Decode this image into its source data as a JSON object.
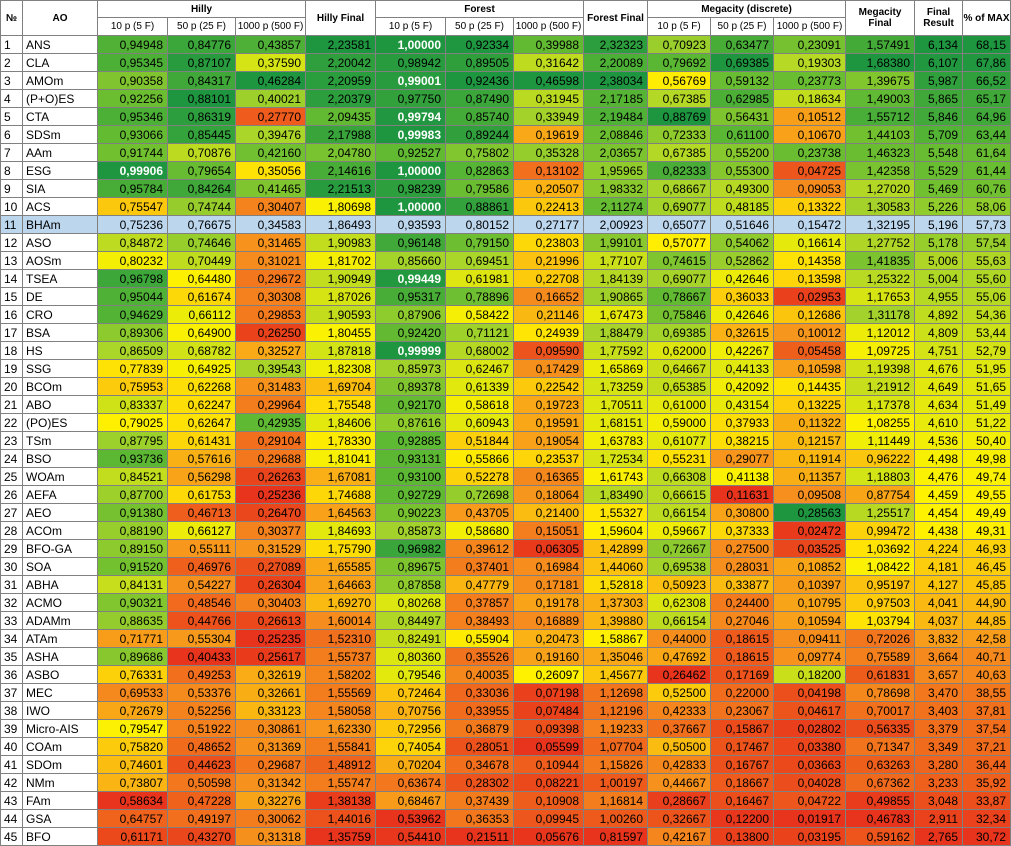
{
  "header": {
    "num": "№",
    "ao": "AO",
    "groups": [
      "Hilly",
      "Hilly Final",
      "Forest",
      "Forest Final",
      "Megacity (discrete)",
      "Megacity Final",
      "Final Result",
      "% of MAX"
    ],
    "sub": [
      "10 p (5 F)",
      "50 p (25 F)",
      "1000 p (500 F)",
      "10 p (5 F)",
      "50 p (25 F)",
      "1000 p (500 F)",
      "10 p (5 F)",
      "50 p (25 F)",
      "1000 p (500 F)"
    ]
  },
  "selected_row": 11,
  "rows": [
    [
      "1",
      "ANS",
      "0,94948",
      "0,84776",
      "0,43857",
      "2,23581",
      "1,00000",
      "0,92334",
      "0,39988",
      "2,32323",
      "0,70923",
      "0,63477",
      "0,23091",
      "1,57491",
      "6,134",
      "68,15"
    ],
    [
      "2",
      "CLA",
      "0,95345",
      "0,87107",
      "0,37590",
      "2,20042",
      "0,98942",
      "0,89505",
      "0,31642",
      "2,20089",
      "0,79692",
      "0,69385",
      "0,19303",
      "1,68380",
      "6,107",
      "67,86"
    ],
    [
      "3",
      "AMOm",
      "0,90358",
      "0,84317",
      "0,46284",
      "2,20959",
      "0,99001",
      "0,92436",
      "0,46598",
      "2,38034",
      "0,56769",
      "0,59132",
      "0,23773",
      "1,39675",
      "5,987",
      "66,52"
    ],
    [
      "4",
      "(P+O)ES",
      "0,92256",
      "0,88101",
      "0,40021",
      "2,20379",
      "0,97750",
      "0,87490",
      "0,31945",
      "2,17185",
      "0,67385",
      "0,62985",
      "0,18634",
      "1,49003",
      "5,865",
      "65,17"
    ],
    [
      "5",
      "CTA",
      "0,95346",
      "0,86319",
      "0,27770",
      "2,09435",
      "0,99794",
      "0,85740",
      "0,33949",
      "2,19484",
      "0,88769",
      "0,56431",
      "0,10512",
      "1,55712",
      "5,846",
      "64,96"
    ],
    [
      "6",
      "SDSm",
      "0,93066",
      "0,85445",
      "0,39476",
      "2,17988",
      "0,99983",
      "0,89244",
      "0,19619",
      "2,08846",
      "0,72333",
      "0,61100",
      "0,10670",
      "1,44103",
      "5,709",
      "63,44"
    ],
    [
      "7",
      "AAm",
      "0,91744",
      "0,70876",
      "0,42160",
      "2,04780",
      "0,92527",
      "0,75802",
      "0,35328",
      "2,03657",
      "0,67385",
      "0,55200",
      "0,23738",
      "1,46323",
      "5,548",
      "61,64"
    ],
    [
      "8",
      "ESG",
      "0,99906",
      "0,79654",
      "0,35056",
      "2,14616",
      "1,00000",
      "0,82863",
      "0,13102",
      "1,95965",
      "0,82333",
      "0,55300",
      "0,04725",
      "1,42358",
      "5,529",
      "61,44"
    ],
    [
      "9",
      "SIA",
      "0,95784",
      "0,84264",
      "0,41465",
      "2,21513",
      "0,98239",
      "0,79586",
      "0,20507",
      "1,98332",
      "0,68667",
      "0,49300",
      "0,09053",
      "1,27020",
      "5,469",
      "60,76"
    ],
    [
      "10",
      "ACS",
      "0,75547",
      "0,74744",
      "0,30407",
      "1,80698",
      "1,00000",
      "0,88861",
      "0,22413",
      "2,11274",
      "0,69077",
      "0,48185",
      "0,13322",
      "1,30583",
      "5,226",
      "58,06"
    ],
    [
      "11",
      "BHAm",
      "0,75236",
      "0,76675",
      "0,34583",
      "1,86493",
      "0,93593",
      "0,80152",
      "0,27177",
      "2,00923",
      "0,65077",
      "0,51646",
      "0,15472",
      "1,32195",
      "5,196",
      "57,73"
    ],
    [
      "12",
      "ASO",
      "0,84872",
      "0,74646",
      "0,31465",
      "1,90983",
      "0,96148",
      "0,79150",
      "0,23803",
      "1,99101",
      "0,57077",
      "0,54062",
      "0,16614",
      "1,27752",
      "5,178",
      "57,54"
    ],
    [
      "13",
      "AOSm",
      "0,80232",
      "0,70449",
      "0,31021",
      "1,81702",
      "0,85660",
      "0,69451",
      "0,21996",
      "1,77107",
      "0,74615",
      "0,52862",
      "0,14358",
      "1,41835",
      "5,006",
      "55,63"
    ],
    [
      "14",
      "TSEA",
      "0,96798",
      "0,64480",
      "0,29672",
      "1,90949",
      "0,99449",
      "0,61981",
      "0,22708",
      "1,84139",
      "0,69077",
      "0,42646",
      "0,13598",
      "1,25322",
      "5,004",
      "55,60"
    ],
    [
      "15",
      "DE",
      "0,95044",
      "0,61674",
      "0,30308",
      "1,87026",
      "0,95317",
      "0,78896",
      "0,16652",
      "1,90865",
      "0,78667",
      "0,36033",
      "0,02953",
      "1,17653",
      "4,955",
      "55,06"
    ],
    [
      "16",
      "CRO",
      "0,94629",
      "0,66112",
      "0,29853",
      "1,90593",
      "0,87906",
      "0,58422",
      "0,21146",
      "1,67473",
      "0,75846",
      "0,42646",
      "0,12686",
      "1,31178",
      "4,892",
      "54,36"
    ],
    [
      "17",
      "BSA",
      "0,89306",
      "0,64900",
      "0,26250",
      "1,80455",
      "0,92420",
      "0,71121",
      "0,24939",
      "1,88479",
      "0,69385",
      "0,32615",
      "0,10012",
      "1,12012",
      "4,809",
      "53,44"
    ],
    [
      "18",
      "HS",
      "0,86509",
      "0,68782",
      "0,32527",
      "1,87818",
      "0,99999",
      "0,68002",
      "0,09590",
      "1,77592",
      "0,62000",
      "0,42267",
      "0,05458",
      "1,09725",
      "4,751",
      "52,79"
    ],
    [
      "19",
      "SSG",
      "0,77839",
      "0,64925",
      "0,39543",
      "1,82308",
      "0,85973",
      "0,62467",
      "0,17429",
      "1,65869",
      "0,64667",
      "0,44133",
      "0,10598",
      "1,19398",
      "4,676",
      "51,95"
    ],
    [
      "20",
      "BCOm",
      "0,75953",
      "0,62268",
      "0,31483",
      "1,69704",
      "0,89378",
      "0,61339",
      "0,22542",
      "1,73259",
      "0,65385",
      "0,42092",
      "0,14435",
      "1,21912",
      "4,649",
      "51,65"
    ],
    [
      "21",
      "ABO",
      "0,83337",
      "0,62247",
      "0,29964",
      "1,75548",
      "0,92170",
      "0,58618",
      "0,19723",
      "1,70511",
      "0,61000",
      "0,43154",
      "0,13225",
      "1,17378",
      "4,634",
      "51,49"
    ],
    [
      "22",
      "(PO)ES",
      "0,79025",
      "0,62647",
      "0,42935",
      "1,84606",
      "0,87616",
      "0,60943",
      "0,19591",
      "1,68151",
      "0,59000",
      "0,37933",
      "0,11322",
      "1,08255",
      "4,610",
      "51,22"
    ],
    [
      "23",
      "TSm",
      "0,87795",
      "0,61431",
      "0,29104",
      "1,78330",
      "0,92885",
      "0,51844",
      "0,19054",
      "1,63783",
      "0,61077",
      "0,38215",
      "0,12157",
      "1,11449",
      "4,536",
      "50,40"
    ],
    [
      "24",
      "BSO",
      "0,93736",
      "0,57616",
      "0,29688",
      "1,81041",
      "0,93131",
      "0,55866",
      "0,23537",
      "1,72534",
      "0,55231",
      "0,29077",
      "0,11914",
      "0,96222",
      "4,498",
      "49,98"
    ],
    [
      "25",
      "WOAm",
      "0,84521",
      "0,56298",
      "0,26263",
      "1,67081",
      "0,93100",
      "0,52278",
      "0,16365",
      "1,61743",
      "0,66308",
      "0,41138",
      "0,11357",
      "1,18803",
      "4,476",
      "49,74"
    ],
    [
      "26",
      "AEFA",
      "0,87700",
      "0,61753",
      "0,25236",
      "1,74688",
      "0,92729",
      "0,72698",
      "0,18064",
      "1,83490",
      "0,66615",
      "0,11631",
      "0,09508",
      "0,87754",
      "4,459",
      "49,55"
    ],
    [
      "27",
      "AEO",
      "0,91380",
      "0,46713",
      "0,26470",
      "1,64563",
      "0,90223",
      "0,43705",
      "0,21400",
      "1,55327",
      "0,66154",
      "0,30800",
      "0,28563",
      "1,25517",
      "4,454",
      "49,49"
    ],
    [
      "28",
      "ACOm",
      "0,88190",
      "0,66127",
      "0,30377",
      "1,84693",
      "0,85873",
      "0,58680",
      "0,15051",
      "1,59604",
      "0,59667",
      "0,37333",
      "0,02472",
      "0,99472",
      "4,438",
      "49,31"
    ],
    [
      "29",
      "BFO-GA",
      "0,89150",
      "0,55111",
      "0,31529",
      "1,75790",
      "0,96982",
      "0,39612",
      "0,06305",
      "1,42899",
      "0,72667",
      "0,27500",
      "0,03525",
      "1,03692",
      "4,224",
      "46,93"
    ],
    [
      "30",
      "SOA",
      "0,91520",
      "0,46976",
      "0,27089",
      "1,65585",
      "0,89675",
      "0,37401",
      "0,16984",
      "1,44060",
      "0,69538",
      "0,28031",
      "0,10852",
      "1,08422",
      "4,181",
      "46,45"
    ],
    [
      "31",
      "ABHA",
      "0,84131",
      "0,54227",
      "0,26304",
      "1,64663",
      "0,87858",
      "0,47779",
      "0,17181",
      "1,52818",
      "0,50923",
      "0,33877",
      "0,10397",
      "0,95197",
      "4,127",
      "45,85"
    ],
    [
      "32",
      "ACMO",
      "0,90321",
      "0,48546",
      "0,30403",
      "1,69270",
      "0,80268",
      "0,37857",
      "0,19178",
      "1,37303",
      "0,62308",
      "0,24400",
      "0,10795",
      "0,97503",
      "4,041",
      "44,90"
    ],
    [
      "33",
      "ADAMm",
      "0,88635",
      "0,44766",
      "0,26613",
      "1,60014",
      "0,84497",
      "0,38493",
      "0,16889",
      "1,39880",
      "0,66154",
      "0,27046",
      "0,10594",
      "1,03794",
      "4,037",
      "44,85"
    ],
    [
      "34",
      "ATAm",
      "0,71771",
      "0,55304",
      "0,25235",
      "1,52310",
      "0,82491",
      "0,55904",
      "0,20473",
      "1,58867",
      "0,44000",
      "0,18615",
      "0,09411",
      "0,72026",
      "3,832",
      "42,58"
    ],
    [
      "35",
      "ASHA",
      "0,89686",
      "0,40433",
      "0,25617",
      "1,55737",
      "0,80360",
      "0,35526",
      "0,19160",
      "1,35046",
      "0,47692",
      "0,18615",
      "0,09774",
      "0,75589",
      "3,664",
      "40,71"
    ],
    [
      "36",
      "ASBO",
      "0,76331",
      "0,49253",
      "0,32619",
      "1,58202",
      "0,79546",
      "0,40035",
      "0,26097",
      "1,45677",
      "0,26462",
      "0,17169",
      "0,18200",
      "0,61831",
      "3,657",
      "40,63"
    ],
    [
      "37",
      "MEC",
      "0,69533",
      "0,53376",
      "0,32661",
      "1,55569",
      "0,72464",
      "0,33036",
      "0,07198",
      "1,12698",
      "0,52500",
      "0,22000",
      "0,04198",
      "0,78698",
      "3,470",
      "38,55"
    ],
    [
      "38",
      "IWO",
      "0,72679",
      "0,52256",
      "0,33123",
      "1,58058",
      "0,70756",
      "0,33955",
      "0,07484",
      "1,12196",
      "0,42333",
      "0,23067",
      "0,04617",
      "0,70017",
      "3,403",
      "37,81"
    ],
    [
      "39",
      "Micro-AIS",
      "0,79547",
      "0,51922",
      "0,30861",
      "1,62330",
      "0,72956",
      "0,36879",
      "0,09398",
      "1,19233",
      "0,37667",
      "0,15867",
      "0,02802",
      "0,56335",
      "3,379",
      "37,54"
    ],
    [
      "40",
      "COAm",
      "0,75820",
      "0,48652",
      "0,31369",
      "1,55841",
      "0,74054",
      "0,28051",
      "0,05599",
      "1,07704",
      "0,50500",
      "0,17467",
      "0,03380",
      "0,71347",
      "3,349",
      "37,21"
    ],
    [
      "41",
      "SDOm",
      "0,74601",
      "0,44623",
      "0,29687",
      "1,48912",
      "0,70204",
      "0,34678",
      "0,10944",
      "1,15826",
      "0,42833",
      "0,16767",
      "0,03663",
      "0,63263",
      "3,280",
      "36,44"
    ],
    [
      "42",
      "NMm",
      "0,73807",
      "0,50598",
      "0,31342",
      "1,55747",
      "0,63674",
      "0,28302",
      "0,08221",
      "1,00197",
      "0,44667",
      "0,18667",
      "0,04028",
      "0,67362",
      "3,233",
      "35,92"
    ],
    [
      "43",
      "FAm",
      "0,58634",
      "0,47228",
      "0,32276",
      "1,38138",
      "0,68467",
      "0,37439",
      "0,10908",
      "1,16814",
      "0,28667",
      "0,16467",
      "0,04722",
      "0,49855",
      "3,048",
      "33,87"
    ],
    [
      "44",
      "GSA",
      "0,64757",
      "0,49197",
      "0,30062",
      "1,44016",
      "0,53962",
      "0,36353",
      "0,09945",
      "1,00260",
      "0,32667",
      "0,12200",
      "0,01917",
      "0,46783",
      "2,911",
      "32,34"
    ],
    [
      "45",
      "BFO",
      "0,61171",
      "0,43270",
      "0,31318",
      "1,35759",
      "0,54410",
      "0,21511",
      "0,05676",
      "0,81597",
      "0,42167",
      "0,13800",
      "0,03195",
      "0,59162",
      "2,765",
      "30,72"
    ]
  ],
  "colors": {
    "green_dark": "#1e9640",
    "green": "#5cb833",
    "lime": "#a8d42a",
    "yellow": "#fff200",
    "orange": "#f7941d",
    "red": "#e8341c",
    "selected": "#bcd6ee"
  }
}
